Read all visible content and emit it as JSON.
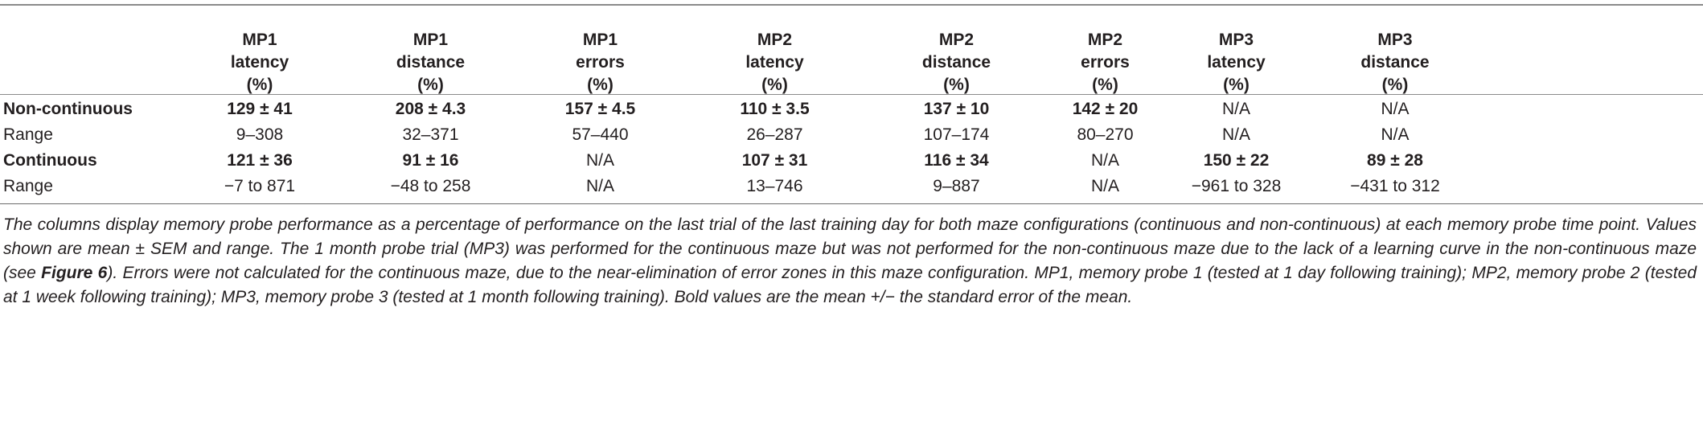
{
  "table": {
    "columns": [
      {
        "lines": [
          "MP1",
          "latency",
          "(%)"
        ]
      },
      {
        "lines": [
          "MP1",
          "distance",
          "(%)"
        ]
      },
      {
        "lines": [
          "MP1",
          "errors",
          "(%)"
        ]
      },
      {
        "lines": [
          "MP2",
          "latency",
          "(%)"
        ]
      },
      {
        "lines": [
          "MP2",
          "distance",
          "(%)"
        ]
      },
      {
        "lines": [
          "MP2",
          "errors",
          "(%)"
        ]
      },
      {
        "lines": [
          "MP3",
          "latency",
          "(%)"
        ]
      },
      {
        "lines": [
          "MP3",
          "distance",
          "(%)"
        ]
      }
    ],
    "rows": [
      {
        "label": "Non-continuous",
        "bold": true,
        "cells": [
          "129 ± 41",
          "208 ± 4.3",
          "157 ± 4.5",
          "110 ± 3.5",
          "137 ± 10",
          "142 ± 20",
          "N/A",
          "N/A"
        ],
        "bold_cells": [
          true,
          true,
          true,
          true,
          true,
          true,
          false,
          false
        ]
      },
      {
        "label": "Range",
        "bold": false,
        "cells": [
          "9–308",
          "32–371",
          "57–440",
          "26–287",
          "107–174",
          "80–270",
          "N/A",
          "N/A"
        ],
        "bold_cells": [
          false,
          false,
          false,
          false,
          false,
          false,
          false,
          false
        ]
      },
      {
        "label": "Continuous",
        "bold": true,
        "cells": [
          "121 ± 36",
          "91 ± 16",
          "N/A",
          "107 ± 31",
          "116 ± 34",
          "N/A",
          "150 ± 22",
          "89 ± 28"
        ],
        "bold_cells": [
          true,
          true,
          false,
          true,
          true,
          false,
          true,
          true
        ]
      },
      {
        "label": "Range",
        "bold": false,
        "cells": [
          "−7 to 871",
          "−48 to 258",
          "N/A",
          "13–746",
          "9–887",
          "N/A",
          "−961 to 328",
          "−431 to 312"
        ],
        "bold_cells": [
          false,
          false,
          false,
          false,
          false,
          false,
          false,
          false
        ]
      }
    ]
  },
  "caption": {
    "before_link": "The columns display memory probe performance as a percentage of performance on the last trial of the last training day for both maze configurations (continuous and non-continuous) at each memory probe time point. Values shown are mean ± SEM and range. The 1 month probe trial (MP3) was performed for the continuous maze but was not performed for the non-continuous maze due to the lack of a learning curve in the non-continuous maze (see ",
    "link": "Figure 6",
    "after_link": "). Errors were not calculated for the continuous maze, due to the near-elimination of error zones in this maze configuration. MP1, memory probe 1 (tested at 1 day following training); MP2, memory probe 2 (tested at 1 week following training); MP3, memory probe 3 (tested at 1 month following training). Bold values are the mean +/− the standard error of the mean."
  }
}
